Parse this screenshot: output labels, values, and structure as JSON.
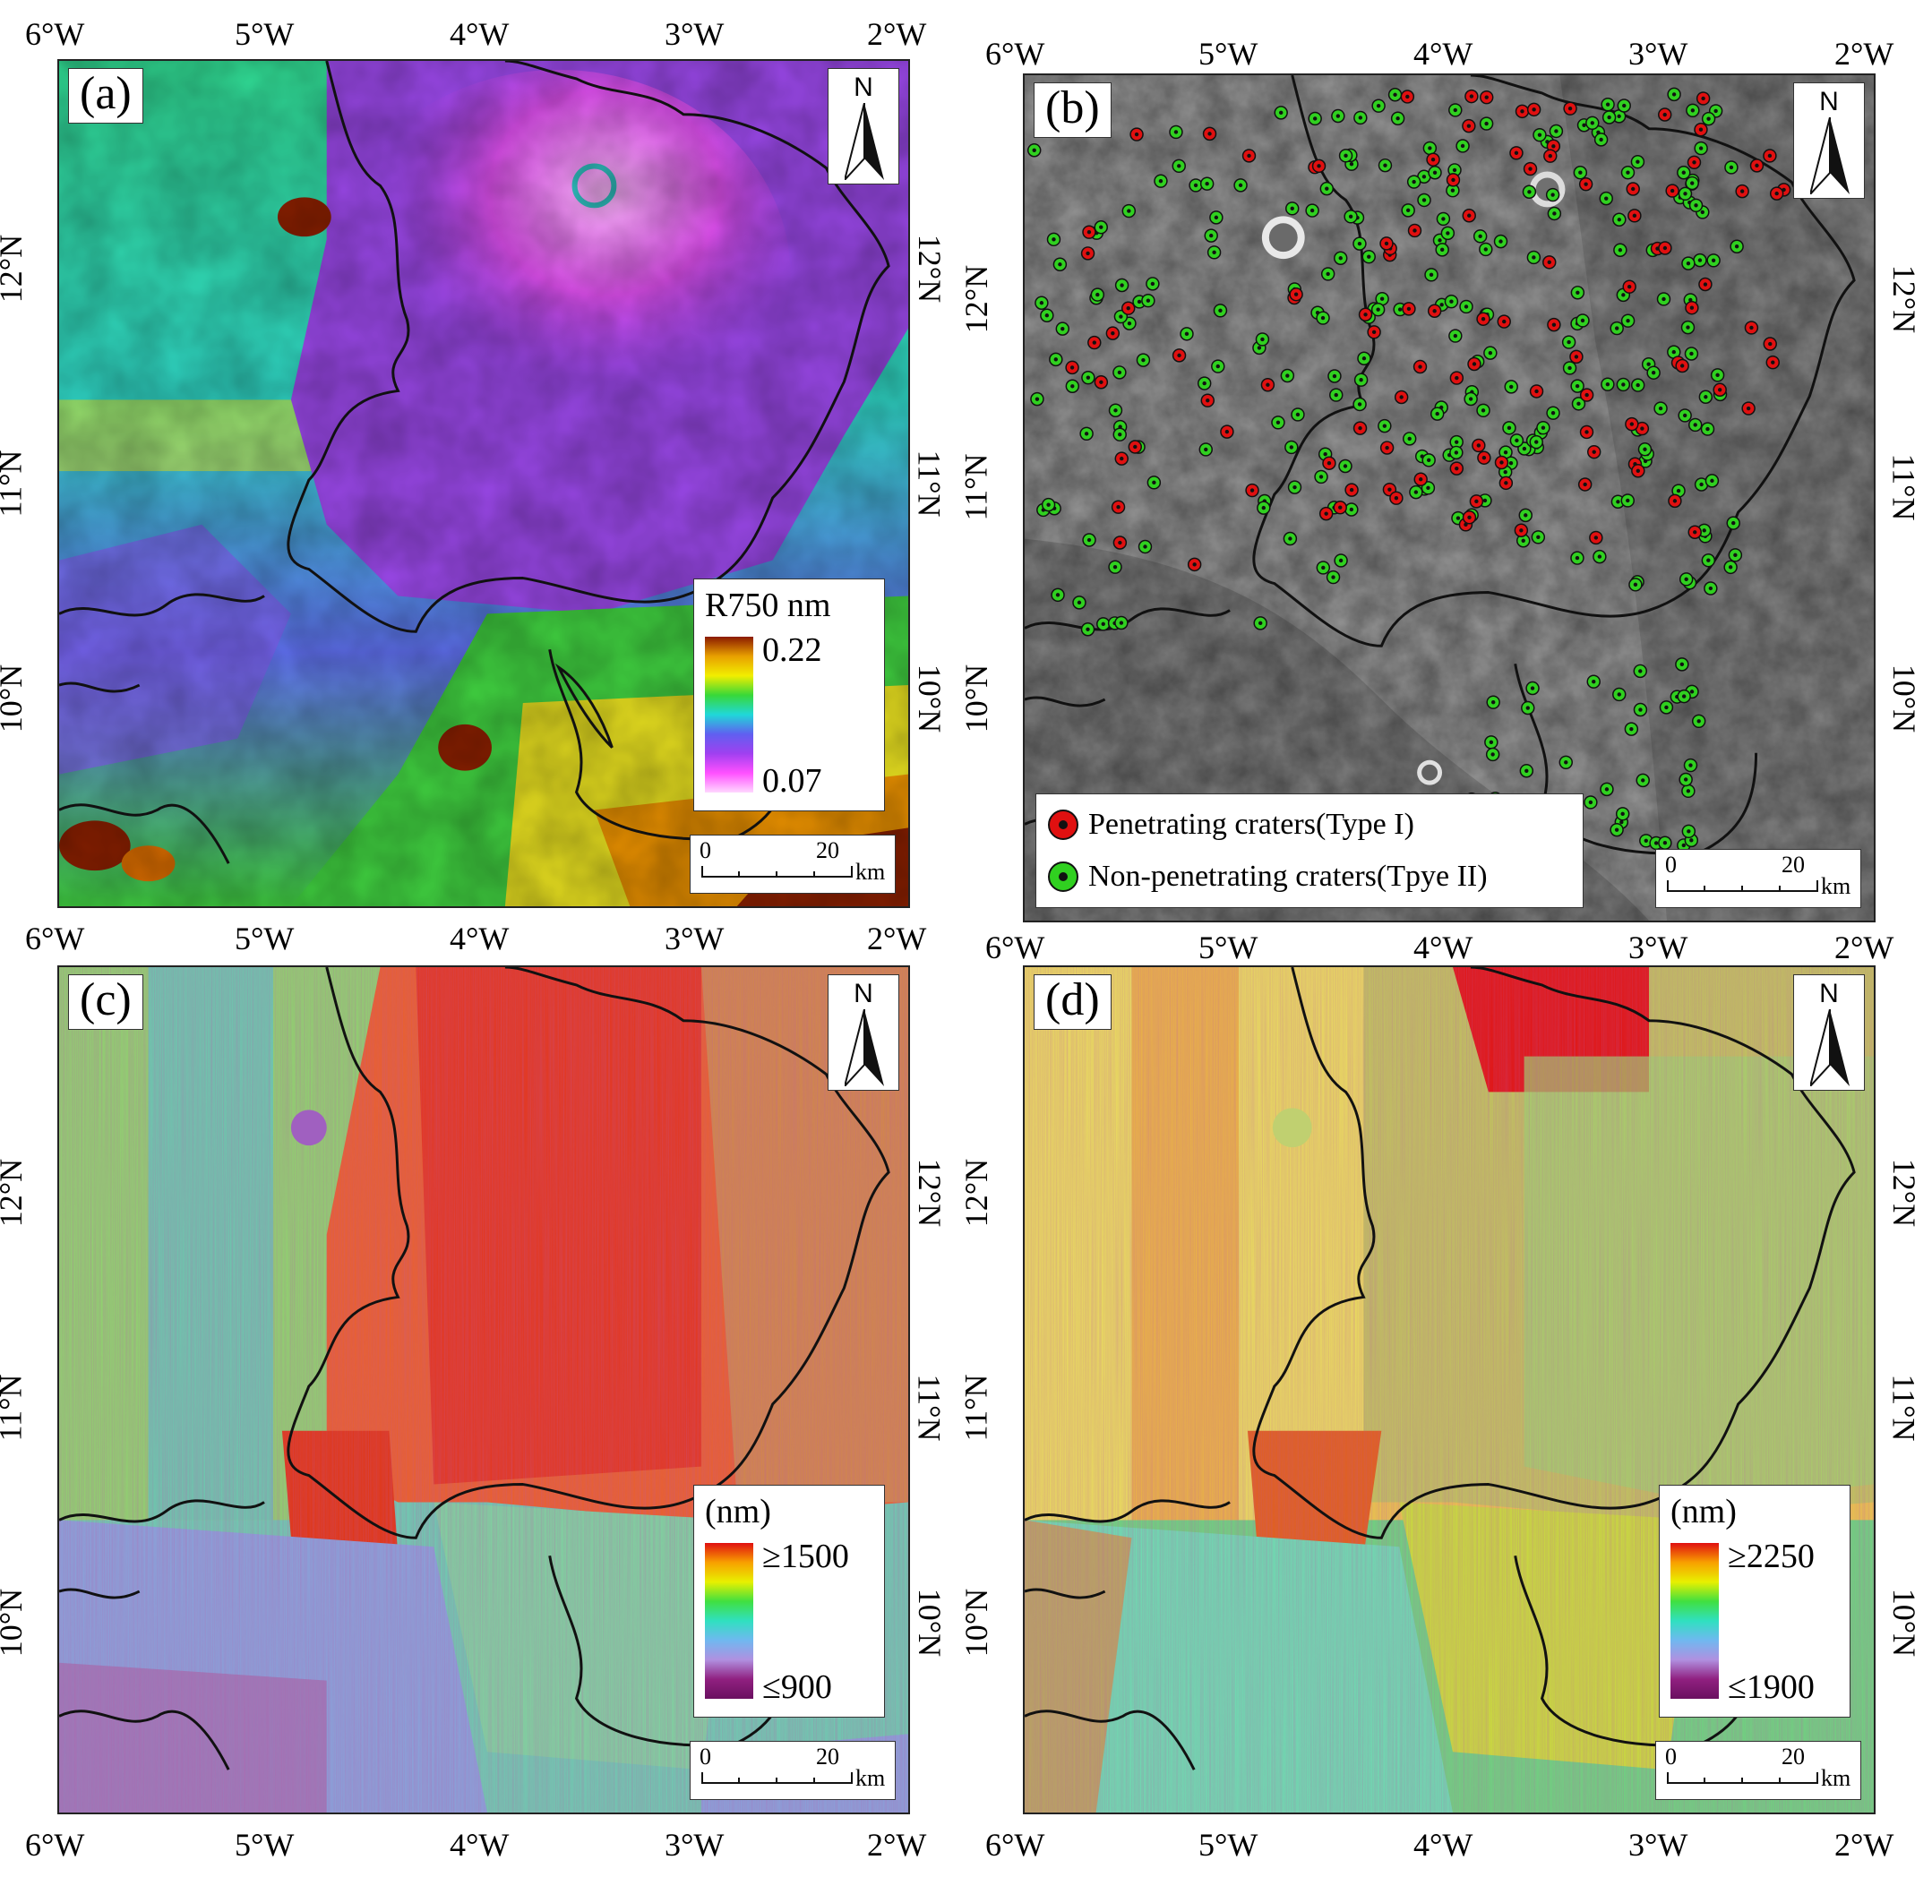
{
  "lon_ticks": [
    "6°W",
    "5°W",
    "4°W",
    "3°W",
    "2°W"
  ],
  "lat_ticks": [
    "12°N",
    "11°N",
    "10°N"
  ],
  "panels": {
    "a": {
      "label": "(a)",
      "legend_title": "R750 nm",
      "legend_max": "0.22",
      "legend_min": "0.07",
      "gradient_colors": [
        "#8b1a00",
        "#e8a000",
        "#f2ee00",
        "#38d838",
        "#20d8d8",
        "#6060f0",
        "#a040f0",
        "#ff50ff",
        "#ffd8ff"
      ]
    },
    "b": {
      "label": "(b)",
      "crater_legend": [
        {
          "label": "Penetrating craters(Type I)",
          "color": "#e01010"
        },
        {
          "label": "Non-penetrating craters(Tpye II)",
          "color": "#30d020"
        }
      ]
    },
    "c": {
      "label": "(c)",
      "legend_title": "(nm)",
      "legend_max": "≥1500",
      "legend_min": "≤900",
      "gradient_colors": [
        "#e01010",
        "#f8a000",
        "#e8f000",
        "#40e040",
        "#30e0c0",
        "#70b8f0",
        "#b090e0",
        "#902080",
        "#6a1060"
      ]
    },
    "d": {
      "label": "(d)",
      "legend_title": "(nm)",
      "legend_max": "≥2250",
      "legend_min": "≤1900",
      "gradient_colors": [
        "#e01010",
        "#f8a000",
        "#e8f000",
        "#40e040",
        "#30e0c0",
        "#70b8f0",
        "#b090e0",
        "#902080",
        "#6a1060"
      ]
    }
  },
  "north_label": "N",
  "scale_bar": {
    "start": "0",
    "end": "20",
    "unit": "km"
  }
}
